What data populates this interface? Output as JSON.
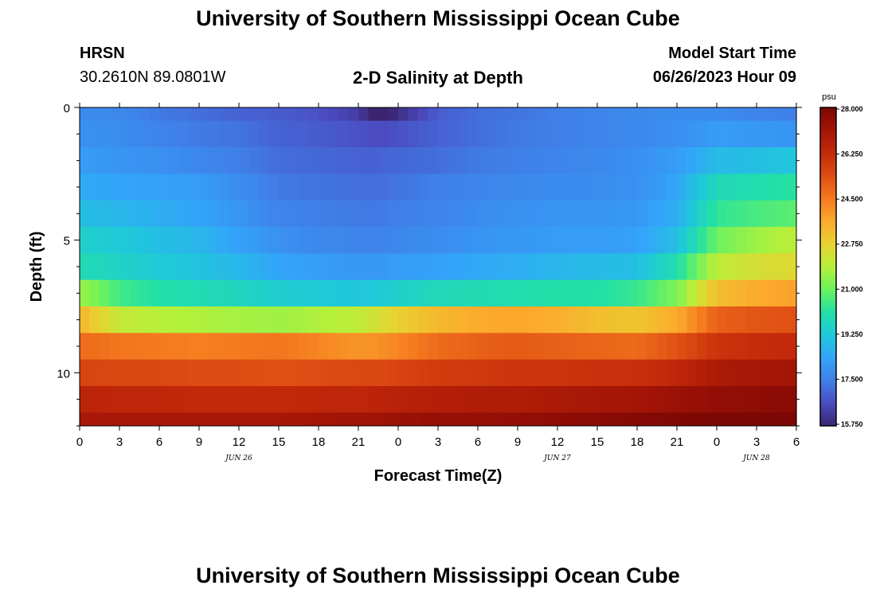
{
  "header": {
    "title": "University of Southern Mississippi Ocean Cube",
    "station": "HRSN",
    "coords": "30.2610N  89.0801W",
    "subtitle": "2-D Salinity at Depth",
    "model_start_label": "Model Start Time",
    "model_start_value": "06/26/2023 Hour 09"
  },
  "footer": {
    "title": "University of Southern Mississippi Ocean Cube"
  },
  "chart_data": {
    "type": "heatmap",
    "variable": "Salinity",
    "units": "psu",
    "xlabel": "Forecast Time(Z)",
    "ylabel": "Depth (ft)",
    "x_range_hours": [
      0,
      54
    ],
    "y_range_ft": [
      0,
      12
    ],
    "x_ticks": [
      "0",
      "3",
      "6",
      "9",
      "12",
      "15",
      "18",
      "21",
      "0",
      "3",
      "6",
      "9",
      "12",
      "15",
      "18",
      "21",
      "0",
      "3",
      "6"
    ],
    "y_ticks": [
      "0",
      "5",
      "10"
    ],
    "date_labels": [
      {
        "text": "JUN 26",
        "hour": 12
      },
      {
        "text": "JUN 27",
        "hour": 36
      },
      {
        "text": "JUN 28",
        "hour": 51
      }
    ],
    "colorbar": {
      "min": 15.75,
      "max": 28.0,
      "ticks": [
        "15.750",
        "17.500",
        "19.250",
        "21.000",
        "22.750",
        "24.500",
        "26.250",
        "28.000"
      ],
      "colors": [
        "#3b2470",
        "#4b4cc2",
        "#3f80e8",
        "#33a4fa",
        "#1fc9d9",
        "#22e0a6",
        "#6cf25e",
        "#b6f03a",
        "#e8d230",
        "#fbaa2d",
        "#f57a1f",
        "#de4d13",
        "#c42a0a",
        "#a31406",
        "#7c0704"
      ]
    },
    "depth_bins_ft": [
      0,
      0.5,
      1.5,
      2.5,
      3.5,
      4.5,
      5.5,
      6.5,
      7.5,
      8.5,
      9.5,
      10.5,
      11.5,
      12
    ],
    "time_hours": [
      0,
      3,
      6,
      9,
      12,
      15,
      18,
      21,
      22.5,
      24,
      27,
      30,
      33,
      36,
      39,
      42,
      45,
      48,
      51,
      54
    ],
    "salinity_psu": [
      [
        17.8,
        17.7,
        17.4,
        17.2,
        17.0,
        16.9,
        16.7,
        16.3,
        15.4,
        16.0,
        16.9,
        17.2,
        17.3,
        17.5,
        17.6,
        17.7,
        17.8,
        17.8,
        17.6,
        17.5
      ],
      [
        17.9,
        17.8,
        17.6,
        17.4,
        17.3,
        17.0,
        16.9,
        16.7,
        16.6,
        16.7,
        17.0,
        17.2,
        17.4,
        17.5,
        17.6,
        17.7,
        17.9,
        18.2,
        18.1,
        18.0
      ],
      [
        18.2,
        18.0,
        17.9,
        17.7,
        17.5,
        17.2,
        17.1,
        17.0,
        17.0,
        17.1,
        17.2,
        17.4,
        17.5,
        17.6,
        17.7,
        17.9,
        18.2,
        18.9,
        19.0,
        19.2
      ],
      [
        18.5,
        18.4,
        18.3,
        18.2,
        17.8,
        17.4,
        17.3,
        17.2,
        17.2,
        17.3,
        17.5,
        17.6,
        17.7,
        17.8,
        17.8,
        17.9,
        18.4,
        19.8,
        20.0,
        20.2
      ],
      [
        19.0,
        18.8,
        18.6,
        18.4,
        18.0,
        17.6,
        17.5,
        17.4,
        17.4,
        17.5,
        17.6,
        17.8,
        17.9,
        18.0,
        18.0,
        18.1,
        18.6,
        20.3,
        20.6,
        20.8
      ],
      [
        19.5,
        19.3,
        19.0,
        18.8,
        18.3,
        17.9,
        17.7,
        17.6,
        17.6,
        17.7,
        17.8,
        18.0,
        18.1,
        18.2,
        18.2,
        18.3,
        19.0,
        21.0,
        21.6,
        22.0
      ],
      [
        19.9,
        19.6,
        19.3,
        19.1,
        18.8,
        18.4,
        18.2,
        18.1,
        18.1,
        18.2,
        18.3,
        18.5,
        18.6,
        18.8,
        18.9,
        19.0,
        20.0,
        22.0,
        22.4,
        22.6
      ],
      [
        21.6,
        20.5,
        20.1,
        19.9,
        19.7,
        19.4,
        19.3,
        19.2,
        19.3,
        19.5,
        19.8,
        19.9,
        20.0,
        20.1,
        20.1,
        20.4,
        21.2,
        23.2,
        23.6,
        23.8
      ],
      [
        23.4,
        22.1,
        21.9,
        21.8,
        21.7,
        21.6,
        21.8,
        22.0,
        22.4,
        22.8,
        23.3,
        23.6,
        23.7,
        23.5,
        23.2,
        23.0,
        23.6,
        25.0,
        25.2,
        25.3
      ],
      [
        24.8,
        24.6,
        24.5,
        24.4,
        24.5,
        24.6,
        24.3,
        24.0,
        24.1,
        24.3,
        24.8,
        25.0,
        25.1,
        25.0,
        24.9,
        24.8,
        25.3,
        26.0,
        26.2,
        26.3
      ],
      [
        25.6,
        25.5,
        25.5,
        25.4,
        25.4,
        25.3,
        25.4,
        25.5,
        25.5,
        25.6,
        25.8,
        25.9,
        26.0,
        26.0,
        26.1,
        26.1,
        26.4,
        26.9,
        27.0,
        27.1
      ],
      [
        26.5,
        26.4,
        26.4,
        26.3,
        26.3,
        26.3,
        26.4,
        26.4,
        26.5,
        26.6,
        26.7,
        26.8,
        26.8,
        26.9,
        27.0,
        27.1,
        27.3,
        27.5,
        27.6,
        27.7
      ],
      [
        27.0,
        27.0,
        27.0,
        27.0,
        27.0,
        27.0,
        27.1,
        27.2,
        27.2,
        27.3,
        27.4,
        27.4,
        27.5,
        27.6,
        27.7,
        27.8,
        27.9,
        28.0,
        28.1,
        28.2
      ]
    ],
    "grid": false
  }
}
